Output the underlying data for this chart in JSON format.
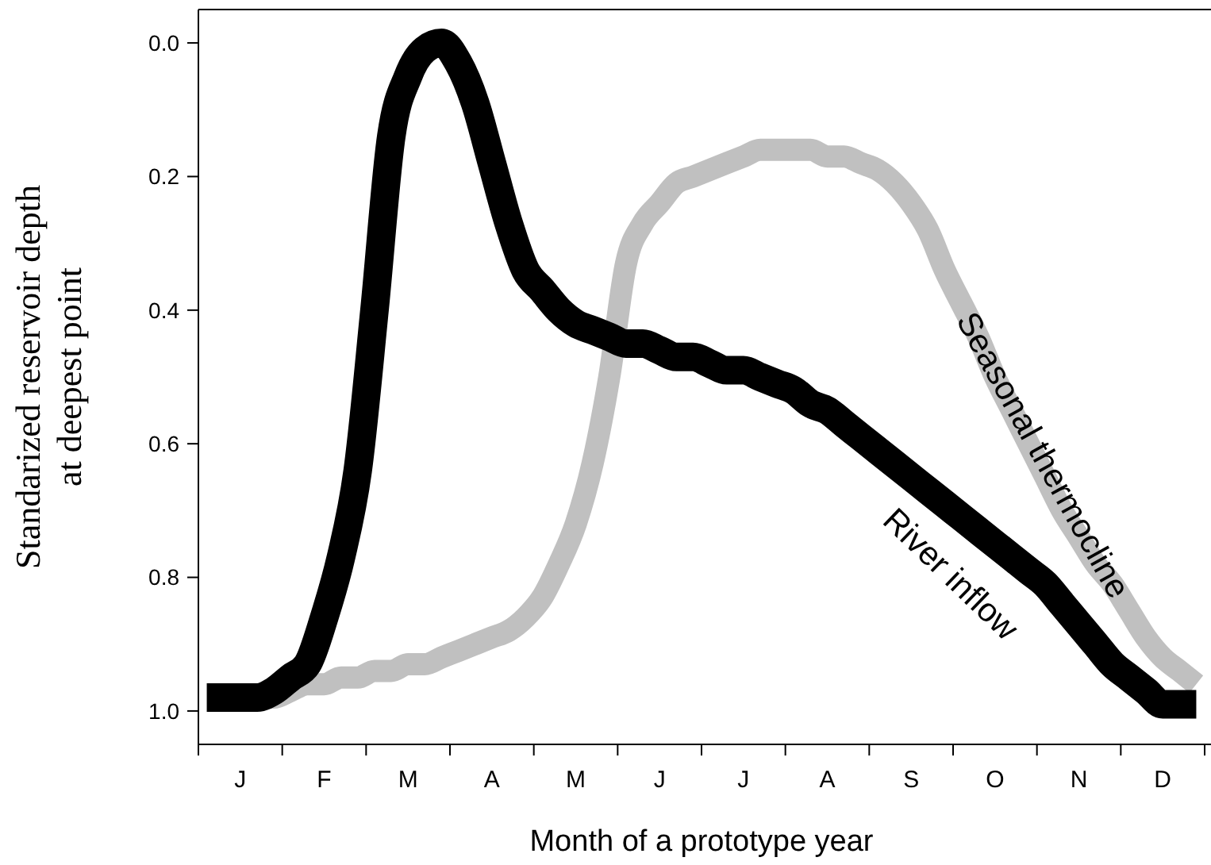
{
  "chart_data": {
    "type": "line",
    "xlabel": "Month of a prototype year",
    "ylabel": "Standarized reservoir depth\nat deepest point",
    "categories": [
      null,
      null,
      "J",
      null,
      null,
      null,
      null,
      "F",
      null,
      null,
      null,
      null,
      "M",
      null,
      null,
      null,
      null,
      "A",
      null,
      null,
      null,
      null,
      "M",
      null,
      null,
      null,
      null,
      "J",
      null,
      null,
      null,
      null,
      "J",
      null,
      null,
      null,
      null,
      "A",
      null,
      null,
      null,
      null,
      "S",
      null,
      null,
      null,
      null,
      "O",
      null,
      null,
      null,
      null,
      "N",
      null,
      null,
      null,
      null,
      "D",
      null,
      null
    ],
    "ylim": [
      1.05,
      -0.05
    ],
    "yticks": [
      {
        "value": 0,
        "label": "0.0"
      },
      0.2,
      0.4,
      0.6,
      0.8,
      {
        "value": 1,
        "label": "1.0"
      }
    ],
    "series": [
      {
        "name": "Seasonal thermocline",
        "color": "#c0c0c0",
        "values": [
          null,
          null,
          null,
          0.98,
          0.98,
          0.97,
          0.96,
          0.96,
          0.95,
          0.95,
          0.94,
          0.94,
          0.93,
          0.93,
          0.92,
          0.91,
          0.9,
          0.89,
          0.88,
          0.86,
          0.83,
          0.78,
          0.72,
          0.63,
          0.5,
          0.33,
          0.27,
          0.24,
          0.21,
          0.2,
          0.19,
          0.18,
          0.17,
          0.16,
          0.16,
          0.16,
          0.16,
          0.17,
          0.17,
          0.18,
          0.19,
          0.21,
          0.24,
          0.28,
          0.34,
          0.39,
          0.44,
          0.5,
          0.55,
          0.6,
          0.65,
          0.7,
          0.74,
          0.78,
          0.81,
          0.85,
          0.89,
          0.92,
          0.94,
          0.96
        ]
      },
      {
        "name": "River inflow",
        "color": "#000000",
        "values": [
          0.98,
          0.98,
          0.98,
          0.98,
          0.97,
          0.95,
          0.93,
          0.86,
          0.77,
          0.64,
          0.4,
          0.14,
          0.05,
          0.01,
          0.0,
          0.03,
          0.09,
          0.18,
          0.27,
          0.34,
          0.37,
          0.4,
          0.42,
          0.43,
          0.44,
          0.45,
          0.45,
          0.46,
          0.47,
          0.47,
          0.48,
          0.49,
          0.49,
          0.5,
          0.51,
          0.52,
          0.54,
          0.55,
          0.57,
          0.59,
          0.61,
          0.63,
          0.65,
          0.67,
          0.69,
          0.71,
          0.73,
          0.75,
          0.77,
          0.79,
          0.81,
          0.84,
          0.87,
          0.9,
          0.93,
          0.95,
          0.97,
          0.99,
          0.99,
          0.99
        ]
      }
    ]
  }
}
